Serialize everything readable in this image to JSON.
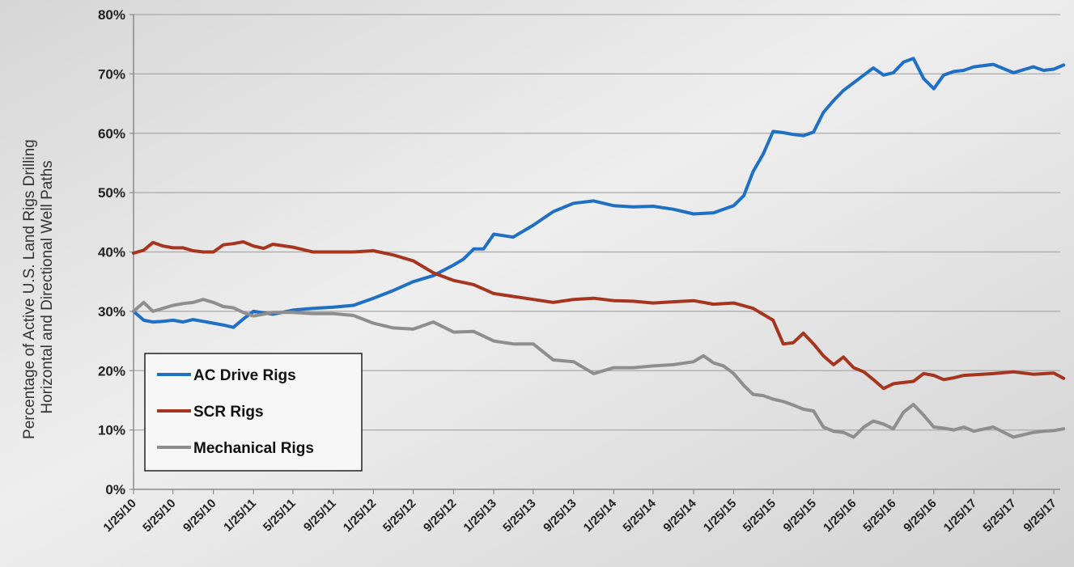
{
  "chart_data": {
    "type": "line",
    "title": "",
    "ylabel_lines": [
      "Percentage of Active U.S. Land Rigs Drilling",
      "Horizontal and Directional Well Paths"
    ],
    "xlabel": "",
    "x_tick_labels": [
      "1/25/10",
      "5/25/10",
      "9/25/10",
      "1/25/11",
      "5/25/11",
      "9/25/11",
      "1/25/12",
      "5/25/12",
      "9/25/12",
      "1/25/13",
      "5/25/13",
      "9/25/13",
      "1/25/14",
      "5/25/14",
      "9/25/14",
      "1/25/15",
      "5/25/15",
      "9/25/15",
      "1/25/16",
      "5/25/16",
      "9/25/16",
      "1/25/17",
      "5/25/17",
      "9/25/17"
    ],
    "y_tick_labels": [
      "0%",
      "10%",
      "20%",
      "30%",
      "40%",
      "50%",
      "60%",
      "70%",
      "80%"
    ],
    "ylim": [
      0,
      80
    ],
    "y_unit": "%",
    "grid": "horizontal",
    "legend_position": "lower-left",
    "series": [
      {
        "name": "AC Drive Rigs",
        "color": "#1f6fc4",
        "x": [
          "1/25/10",
          "2/25/10",
          "3/25/10",
          "4/25/10",
          "5/25/10",
          "6/25/10",
          "7/25/10",
          "8/25/10",
          "9/25/10",
          "10/25/10",
          "11/25/10",
          "12/25/10",
          "1/25/11",
          "3/25/11",
          "5/25/11",
          "7/25/11",
          "9/25/11",
          "11/25/11",
          "1/25/12",
          "3/25/12",
          "5/25/12",
          "7/25/12",
          "9/25/12",
          "10/25/12",
          "11/25/12",
          "12/25/12",
          "1/25/13",
          "3/25/13",
          "5/25/13",
          "7/25/13",
          "9/25/13",
          "11/25/13",
          "1/25/14",
          "3/25/14",
          "5/25/14",
          "7/25/14",
          "9/25/14",
          "11/25/14",
          "12/25/14",
          "1/25/15",
          "2/25/15",
          "3/25/15",
          "4/25/15",
          "5/25/15",
          "6/25/15",
          "7/25/15",
          "8/25/15",
          "9/25/15",
          "10/25/15",
          "11/25/15",
          "12/25/15",
          "1/25/16",
          "2/25/16",
          "3/25/16",
          "4/25/16",
          "5/25/16",
          "6/25/16",
          "7/25/16",
          "8/25/16",
          "9/25/16",
          "10/25/16",
          "11/25/16",
          "12/25/16",
          "1/25/17",
          "3/25/17",
          "5/25/17",
          "7/25/17",
          "8/25/17",
          "9/25/17",
          "10/25/17"
        ],
        "values": [
          30,
          28.5,
          28.2,
          28.3,
          28.5,
          28.2,
          28.6,
          28.3,
          28,
          27.7,
          27.3,
          28.7,
          30,
          29.5,
          30.2,
          30.5,
          30.7,
          31,
          32.2,
          33.5,
          35,
          36,
          37.8,
          38.8,
          40.5,
          40.5,
          43,
          42.5,
          44.5,
          46.8,
          48.2,
          48.6,
          47.8,
          47.6,
          47.7,
          47.2,
          46.4,
          46.6,
          47.2,
          47.8,
          49.5,
          53.5,
          56.5,
          60.3,
          60.1,
          59.8,
          59.6,
          60.2,
          63.5,
          65.5,
          67.2,
          68.5,
          69.8,
          71,
          69.8,
          70.2,
          72,
          72.6,
          69.2,
          67.5,
          69.8,
          70.4,
          70.6,
          71.2,
          71.6,
          70.2,
          71.2,
          70.6,
          70.8,
          71.5
        ]
      },
      {
        "name": "SCR Rigs",
        "color": "#a5351f",
        "x": [
          "1/25/10",
          "2/25/10",
          "3/25/10",
          "4/25/10",
          "5/25/10",
          "6/25/10",
          "7/25/10",
          "8/25/10",
          "9/25/10",
          "10/25/10",
          "11/25/10",
          "12/25/10",
          "1/25/11",
          "2/25/11",
          "3/25/11",
          "5/25/11",
          "7/25/11",
          "9/25/11",
          "11/25/11",
          "1/25/12",
          "3/25/12",
          "5/25/12",
          "7/25/12",
          "9/25/12",
          "11/25/12",
          "1/25/13",
          "3/25/13",
          "5/25/13",
          "7/25/13",
          "9/25/13",
          "11/25/13",
          "1/25/14",
          "3/25/14",
          "5/25/14",
          "7/25/14",
          "9/25/14",
          "11/25/14",
          "1/25/15",
          "3/25/15",
          "5/25/15",
          "6/25/15",
          "7/25/15",
          "8/25/15",
          "9/25/15",
          "10/25/15",
          "11/25/15",
          "12/25/15",
          "1/25/16",
          "2/25/16",
          "3/25/16",
          "4/25/16",
          "5/25/16",
          "6/25/16",
          "7/25/16",
          "8/25/16",
          "9/25/16",
          "10/25/16",
          "11/25/16",
          "12/25/16",
          "1/25/17",
          "3/25/17",
          "5/25/17",
          "7/25/17",
          "9/25/17",
          "10/25/17"
        ],
        "values": [
          39.8,
          40.3,
          41.6,
          41,
          40.7,
          40.7,
          40.2,
          40,
          40,
          41.2,
          41.4,
          41.7,
          41,
          40.6,
          41.3,
          40.8,
          40,
          40,
          40,
          40.2,
          39.5,
          38.5,
          36.5,
          35.2,
          34.5,
          33,
          32.5,
          32,
          31.5,
          32,
          32.2,
          31.8,
          31.7,
          31.4,
          31.6,
          31.8,
          31.2,
          31.4,
          30.5,
          28.5,
          24.5,
          24.7,
          26.3,
          24.5,
          22.5,
          21,
          22.3,
          20.5,
          19.8,
          18.5,
          17,
          17.8,
          18,
          18.2,
          19.5,
          19.2,
          18.5,
          18.8,
          19.2,
          19.3,
          19.5,
          19.8,
          19.4,
          19.6,
          18.7
        ]
      },
      {
        "name": "Mechanical Rigs",
        "color": "#8e8e8e",
        "x": [
          "1/25/10",
          "2/25/10",
          "3/25/10",
          "4/25/10",
          "5/25/10",
          "6/25/10",
          "7/25/10",
          "8/25/10",
          "9/25/10",
          "10/25/10",
          "11/25/10",
          "12/25/10",
          "1/25/11",
          "3/25/11",
          "5/25/11",
          "7/25/11",
          "9/25/11",
          "11/25/11",
          "1/25/12",
          "3/25/12",
          "5/25/12",
          "7/25/12",
          "9/25/12",
          "11/25/12",
          "1/25/13",
          "3/25/13",
          "5/25/13",
          "7/25/13",
          "9/25/13",
          "11/25/13",
          "1/25/14",
          "3/25/14",
          "5/25/14",
          "7/25/14",
          "9/25/14",
          "10/25/14",
          "11/25/14",
          "12/25/14",
          "1/25/15",
          "2/25/15",
          "3/25/15",
          "4/25/15",
          "5/25/15",
          "6/25/15",
          "7/25/15",
          "8/25/15",
          "9/25/15",
          "10/25/15",
          "11/25/15",
          "12/25/15",
          "1/25/16",
          "2/25/16",
          "3/25/16",
          "4/25/16",
          "5/25/16",
          "6/25/16",
          "7/25/16",
          "8/25/16",
          "9/25/16",
          "10/25/16",
          "11/25/16",
          "12/25/16",
          "1/25/17",
          "3/25/17",
          "5/25/17",
          "7/25/17",
          "8/25/17",
          "9/25/17",
          "10/25/17"
        ],
        "values": [
          30,
          31.5,
          30,
          30.5,
          31,
          31.3,
          31.5,
          32,
          31.5,
          30.8,
          30.6,
          29.8,
          29.2,
          29.8,
          29.8,
          29.6,
          29.6,
          29.3,
          28,
          27.2,
          27,
          28.2,
          26.5,
          26.6,
          25,
          24.5,
          24.5,
          21.8,
          21.5,
          19.5,
          20.5,
          20.5,
          20.8,
          21,
          21.5,
          22.5,
          21.3,
          20.8,
          19.5,
          17.5,
          16,
          15.8,
          15.2,
          14.8,
          14.2,
          13.5,
          13.2,
          10.5,
          9.8,
          9.6,
          8.8,
          10.5,
          11.5,
          11,
          10.2,
          13,
          14.3,
          12.5,
          10.5,
          10.3,
          10,
          10.5,
          9.8,
          10.5,
          8.8,
          9.6,
          9.8,
          9.9,
          10.2
        ]
      }
    ]
  }
}
